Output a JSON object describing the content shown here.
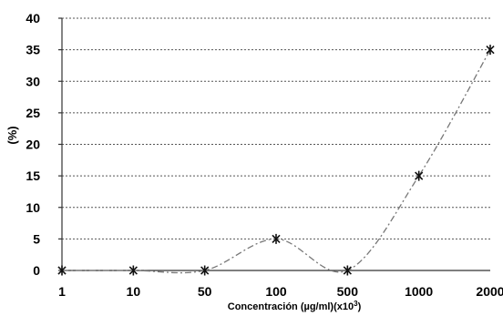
{
  "chart_data": {
    "type": "line",
    "title": "",
    "xlabel": "Concentración (µg/ml)(x10",
    "xlabel_sup": "3",
    "xlabel_close": ")",
    "ylabel": "(%)",
    "categories": [
      "1",
      "10",
      "50",
      "100",
      "500",
      "1000",
      "2000"
    ],
    "series": [
      {
        "values": [
          0,
          0,
          0,
          5,
          0,
          15,
          35
        ],
        "line_color": "#777777",
        "marker_color": "#111111",
        "marker": "asterisk"
      }
    ],
    "ylim": [
      0,
      40
    ],
    "yticks": [
      "0",
      "5",
      "10",
      "15",
      "20",
      "25",
      "30",
      "35",
      "40"
    ],
    "grid": "horizontal-dotted",
    "legend": "none"
  }
}
